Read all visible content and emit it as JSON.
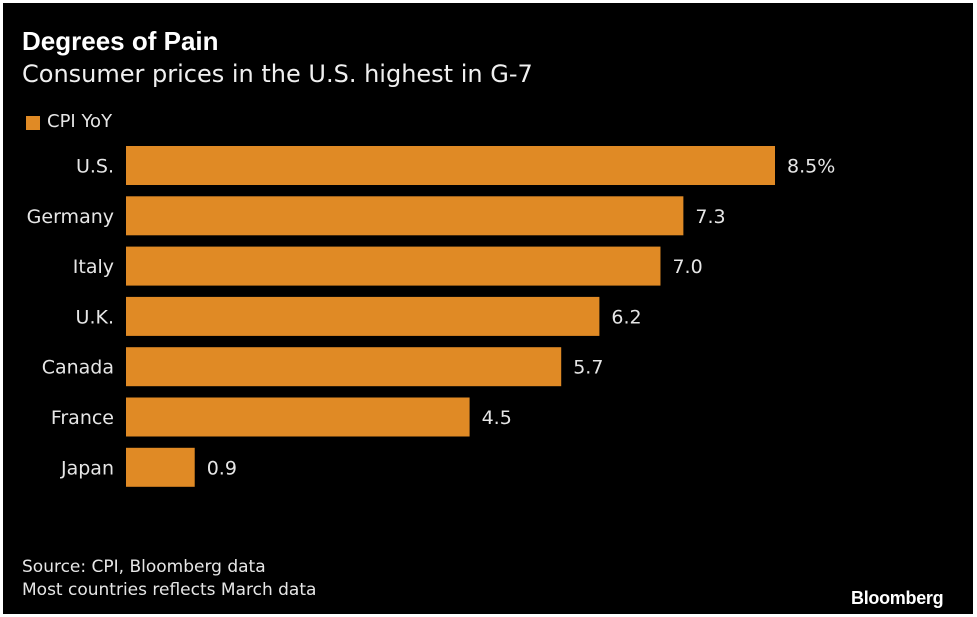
{
  "chart_data": {
    "type": "bar",
    "orientation": "horizontal",
    "title": "Degrees of Pain",
    "subtitle": "Consumer prices in the U.S. highest in G-7",
    "categories": [
      "U.S.",
      "Germany",
      "Italy",
      "U.K.",
      "Canada",
      "France",
      "Japan"
    ],
    "series": [
      {
        "name": "CPI YoY",
        "values": [
          8.5,
          7.3,
          7.0,
          6.2,
          5.7,
          4.5,
          0.9
        ],
        "color": "#e08a25"
      }
    ],
    "data_labels": [
      "8.5%",
      "7.3",
      "7.0",
      "6.2",
      "5.7",
      "4.5",
      "0.9"
    ],
    "xlim": [
      0,
      8.5
    ],
    "grid": false,
    "legend": "top-left"
  },
  "footer": {
    "source": "Source: CPI, Bloomberg data",
    "note": "Most countries reflects March data",
    "logo": "Bloomberg"
  }
}
